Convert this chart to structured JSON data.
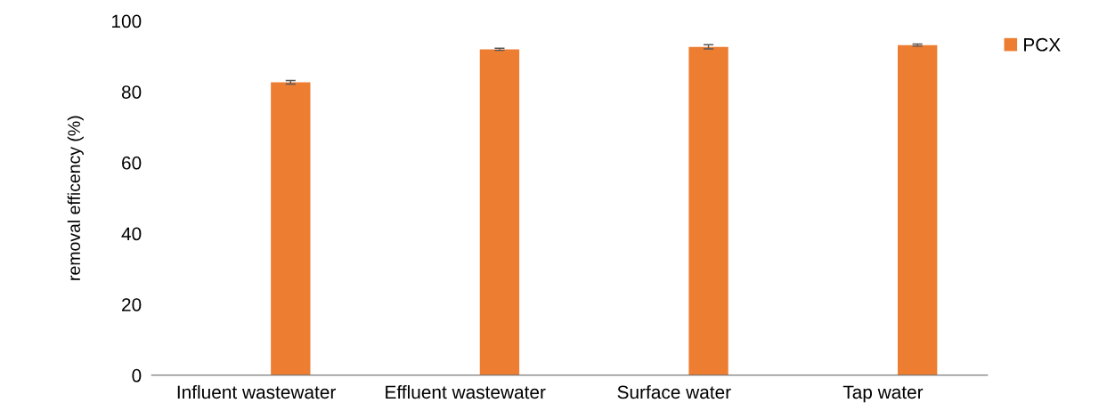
{
  "chart_data": {
    "type": "bar",
    "ylabel": "removal efficency (%)",
    "categories": [
      "Influent wastewater",
      "Effluent wastewater",
      "Surface water",
      "Tap water"
    ],
    "series": [
      {
        "color": "#44546a",
        "values": [
          0,
          0,
          0,
          0
        ]
      },
      {
        "name": "PCX",
        "color": "#ed7d31",
        "values": [
          82.7,
          92.0,
          92.7,
          93.2
        ],
        "errors": [
          0.5,
          0.3,
          0.6,
          0.3
        ]
      }
    ],
    "ylim": [
      0,
      100
    ],
    "yticks": [
      0,
      20,
      40,
      60,
      80,
      100
    ],
    "grid": false,
    "legend": "top right"
  }
}
